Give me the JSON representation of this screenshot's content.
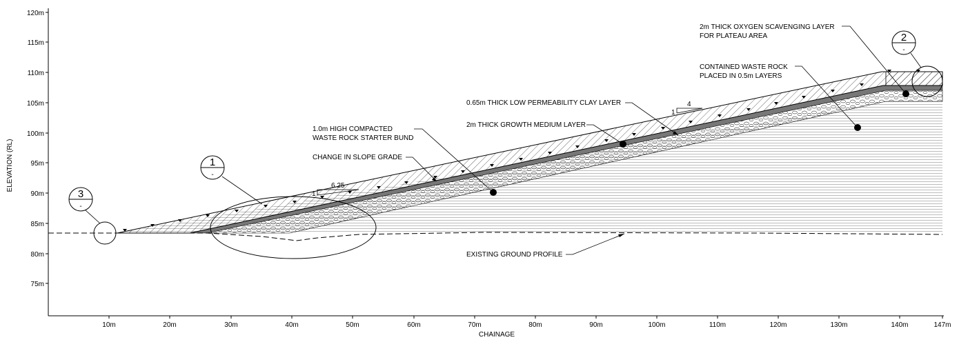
{
  "drawing": {
    "y_axis_title": "ELEVATION (RL)",
    "x_axis_title": "CHAINAGE",
    "y_ticks": [
      "120m",
      "115m",
      "110m",
      "105m",
      "100m",
      "95m",
      "90m",
      "85m",
      "80m",
      "75m"
    ],
    "x_ticks": [
      "10m",
      "20m",
      "30m",
      "40m",
      "50m",
      "60m",
      "70m",
      "80m",
      "90m",
      "100m",
      "110m",
      "120m",
      "130m",
      "140m",
      "147m"
    ],
    "callouts": [
      {
        "number": "1",
        "sub": "-"
      },
      {
        "number": "2",
        "sub": "-"
      },
      {
        "number": "3",
        "sub": "-"
      }
    ],
    "slopes": [
      {
        "rise": "1",
        "run": "6.25"
      },
      {
        "rise": "1",
        "run": "4"
      }
    ],
    "annotations": {
      "oxygen_line1": "2m THICK OXYGEN SCAVENGING LAYER",
      "oxygen_line2": "FOR PLATEAU AREA",
      "waste_line1": "CONTAINED WASTE ROCK",
      "waste_line2": "PLACED IN 0.5m LAYERS",
      "clay": "0.65m THICK LOW PERMEABILITY CLAY LAYER",
      "growth": "2m THICK GROWTH MEDIUM LAYER",
      "bund_line1": "1.0m HIGH COMPACTED",
      "bund_line2": "WASTE ROCK STARTER BUND",
      "grade": "CHANGE IN SLOPE GRADE",
      "ground": "EXISTING GROUND PROFILE"
    },
    "colors": {
      "line": "#000000",
      "background": "#ffffff"
    }
  }
}
